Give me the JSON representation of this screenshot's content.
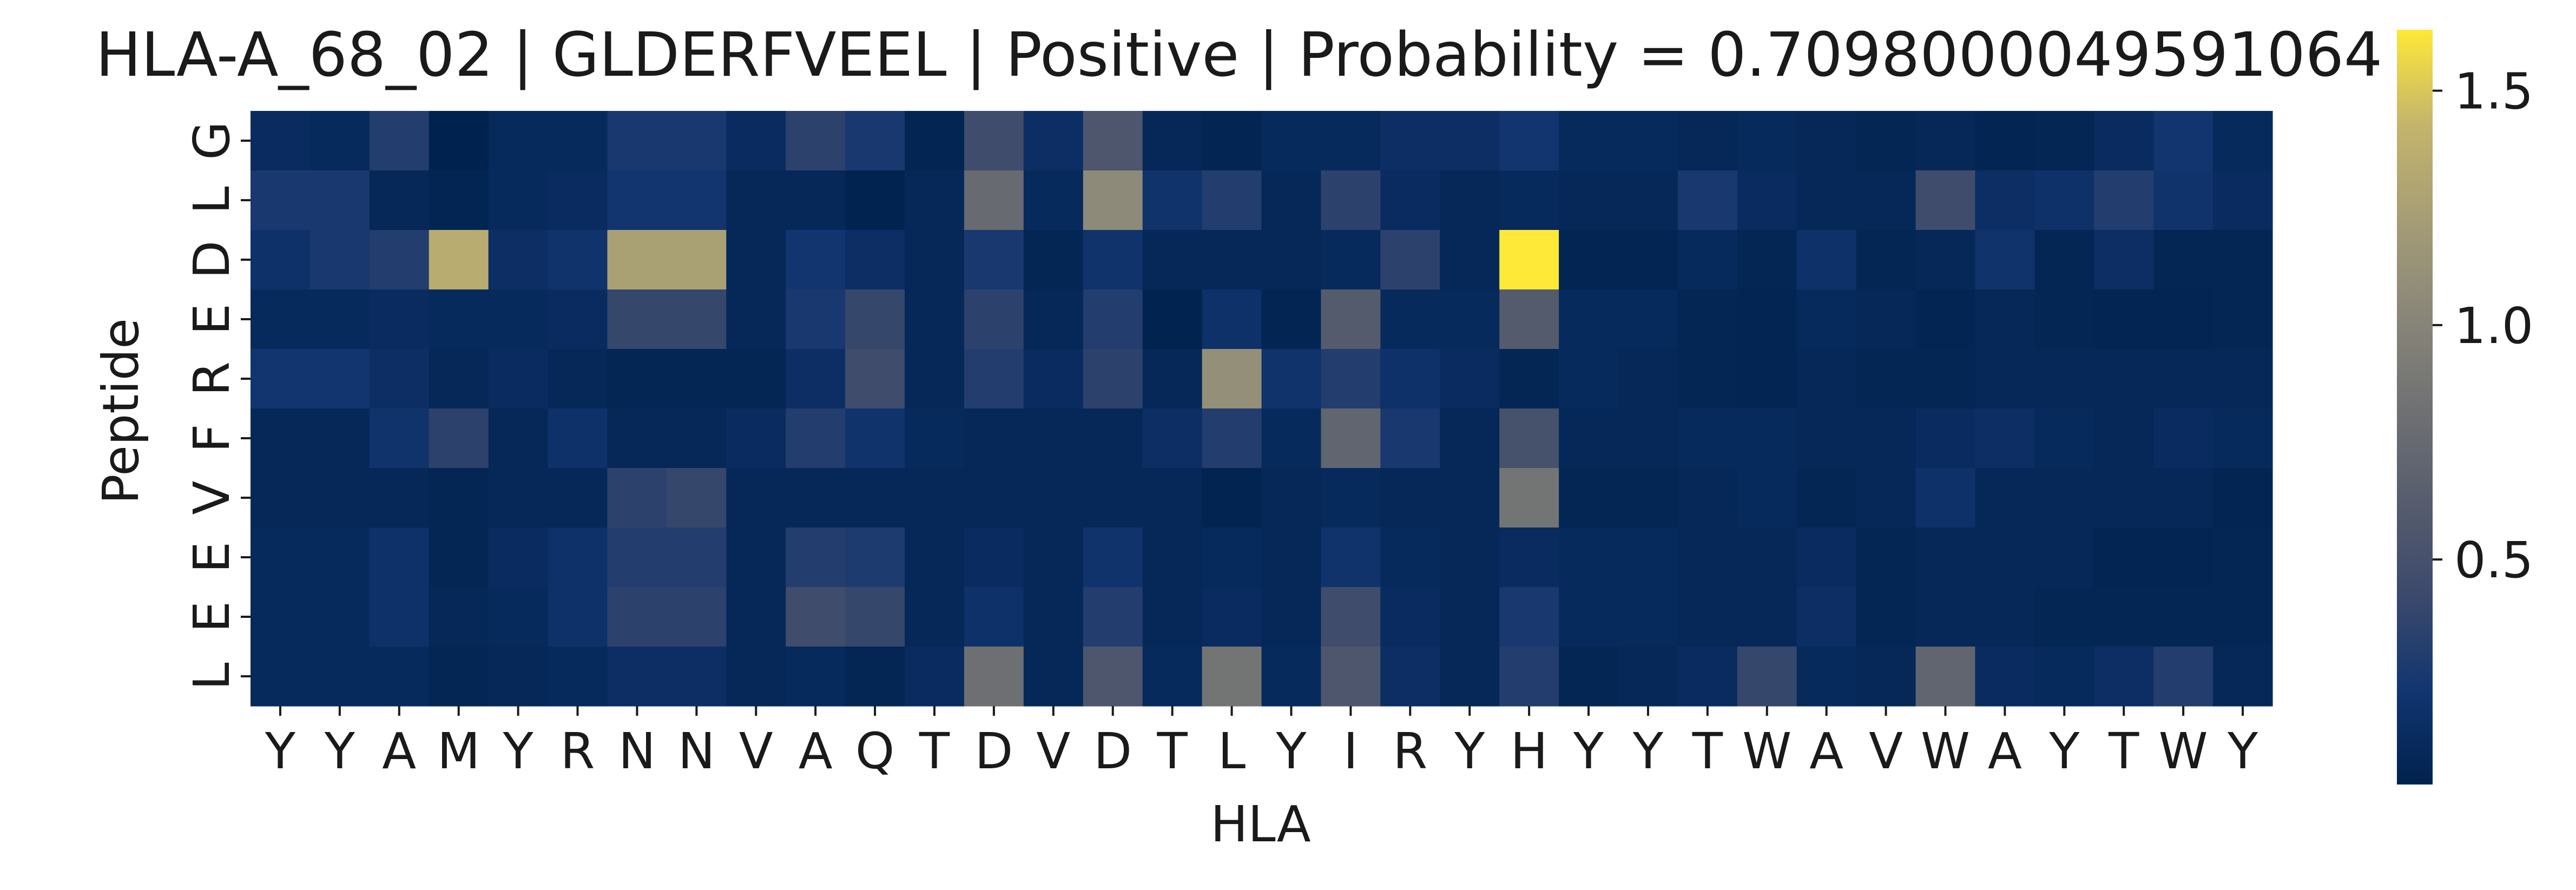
{
  "chart_data": {
    "type": "heatmap",
    "title": "HLA-A_68_02 | GLDERFVEEL | Positive | Probability = 0.7098000049591064",
    "xlabel": "HLA",
    "ylabel": "Peptide",
    "x_categories": [
      "Y",
      "Y",
      "A",
      "M",
      "Y",
      "R",
      "N",
      "N",
      "V",
      "A",
      "Q",
      "T",
      "D",
      "V",
      "D",
      "T",
      "L",
      "Y",
      "I",
      "R",
      "Y",
      "H",
      "Y",
      "Y",
      "T",
      "W",
      "A",
      "V",
      "W",
      "A",
      "Y",
      "T",
      "W",
      "Y"
    ],
    "y_categories": [
      "G",
      "L",
      "D",
      "E",
      "R",
      "F",
      "V",
      "E",
      "E",
      "L"
    ],
    "colormap": "cividis",
    "colorbar": {
      "min": 0.02,
      "max": 1.63,
      "ticks": [
        0.5,
        1.0,
        1.5
      ],
      "tick_labels": [
        "0.5",
        "1.0",
        "1.5"
      ]
    },
    "values": [
      [
        0.12,
        0.1,
        0.3,
        0.02,
        0.1,
        0.1,
        0.25,
        0.25,
        0.12,
        0.35,
        0.25,
        0.05,
        0.45,
        0.15,
        0.55,
        0.08,
        0.05,
        0.1,
        0.1,
        0.15,
        0.15,
        0.22,
        0.1,
        0.1,
        0.08,
        0.1,
        0.08,
        0.06,
        0.08,
        0.05,
        0.06,
        0.12,
        0.22,
        0.1
      ],
      [
        0.25,
        0.25,
        0.08,
        0.05,
        0.1,
        0.12,
        0.22,
        0.22,
        0.08,
        0.08,
        0.03,
        0.08,
        0.75,
        0.1,
        1.05,
        0.2,
        0.3,
        0.08,
        0.35,
        0.12,
        0.08,
        0.1,
        0.08,
        0.08,
        0.25,
        0.12,
        0.08,
        0.08,
        0.45,
        0.15,
        0.18,
        0.3,
        0.2,
        0.12
      ],
      [
        0.18,
        0.25,
        0.3,
        1.35,
        0.15,
        0.2,
        1.25,
        1.25,
        0.08,
        0.22,
        0.15,
        0.08,
        0.25,
        0.06,
        0.2,
        0.08,
        0.08,
        0.08,
        0.1,
        0.35,
        0.08,
        1.63,
        0.05,
        0.05,
        0.1,
        0.06,
        0.18,
        0.06,
        0.08,
        0.2,
        0.06,
        0.15,
        0.06,
        0.06
      ],
      [
        0.1,
        0.1,
        0.12,
        0.1,
        0.1,
        0.12,
        0.4,
        0.4,
        0.08,
        0.25,
        0.4,
        0.08,
        0.35,
        0.08,
        0.3,
        0.03,
        0.18,
        0.05,
        0.6,
        0.1,
        0.1,
        0.6,
        0.1,
        0.1,
        0.06,
        0.05,
        0.1,
        0.08,
        0.05,
        0.08,
        0.06,
        0.05,
        0.05,
        0.06
      ],
      [
        0.22,
        0.22,
        0.15,
        0.08,
        0.12,
        0.08,
        0.06,
        0.06,
        0.06,
        0.15,
        0.45,
        0.08,
        0.3,
        0.12,
        0.35,
        0.08,
        1.1,
        0.2,
        0.3,
        0.18,
        0.12,
        0.06,
        0.1,
        0.08,
        0.06,
        0.05,
        0.08,
        0.06,
        0.06,
        0.08,
        0.08,
        0.08,
        0.08,
        0.08
      ],
      [
        0.08,
        0.08,
        0.2,
        0.35,
        0.08,
        0.18,
        0.08,
        0.08,
        0.12,
        0.3,
        0.2,
        0.1,
        0.08,
        0.08,
        0.08,
        0.15,
        0.3,
        0.1,
        0.7,
        0.25,
        0.08,
        0.5,
        0.08,
        0.08,
        0.1,
        0.1,
        0.08,
        0.08,
        0.12,
        0.15,
        0.1,
        0.08,
        0.12,
        0.1
      ],
      [
        0.08,
        0.08,
        0.08,
        0.06,
        0.08,
        0.08,
        0.35,
        0.4,
        0.08,
        0.08,
        0.08,
        0.08,
        0.08,
        0.08,
        0.08,
        0.08,
        0.04,
        0.08,
        0.1,
        0.08,
        0.08,
        0.85,
        0.06,
        0.06,
        0.08,
        0.1,
        0.06,
        0.08,
        0.18,
        0.08,
        0.08,
        0.08,
        0.08,
        0.05
      ],
      [
        0.1,
        0.1,
        0.18,
        0.06,
        0.12,
        0.18,
        0.3,
        0.3,
        0.08,
        0.3,
        0.28,
        0.08,
        0.12,
        0.08,
        0.2,
        0.08,
        0.1,
        0.08,
        0.2,
        0.1,
        0.08,
        0.12,
        0.1,
        0.1,
        0.08,
        0.08,
        0.12,
        0.06,
        0.08,
        0.08,
        0.08,
        0.05,
        0.05,
        0.06
      ],
      [
        0.1,
        0.1,
        0.18,
        0.08,
        0.1,
        0.18,
        0.35,
        0.35,
        0.08,
        0.45,
        0.4,
        0.08,
        0.18,
        0.08,
        0.3,
        0.08,
        0.12,
        0.08,
        0.45,
        0.12,
        0.08,
        0.25,
        0.1,
        0.1,
        0.08,
        0.08,
        0.15,
        0.06,
        0.08,
        0.08,
        0.06,
        0.06,
        0.06,
        0.06
      ],
      [
        0.1,
        0.1,
        0.1,
        0.06,
        0.08,
        0.1,
        0.15,
        0.15,
        0.08,
        0.1,
        0.06,
        0.12,
        0.8,
        0.08,
        0.55,
        0.1,
        0.85,
        0.1,
        0.55,
        0.15,
        0.08,
        0.3,
        0.06,
        0.08,
        0.12,
        0.4,
        0.1,
        0.08,
        0.7,
        0.12,
        0.1,
        0.15,
        0.3,
        0.08
      ]
    ]
  }
}
